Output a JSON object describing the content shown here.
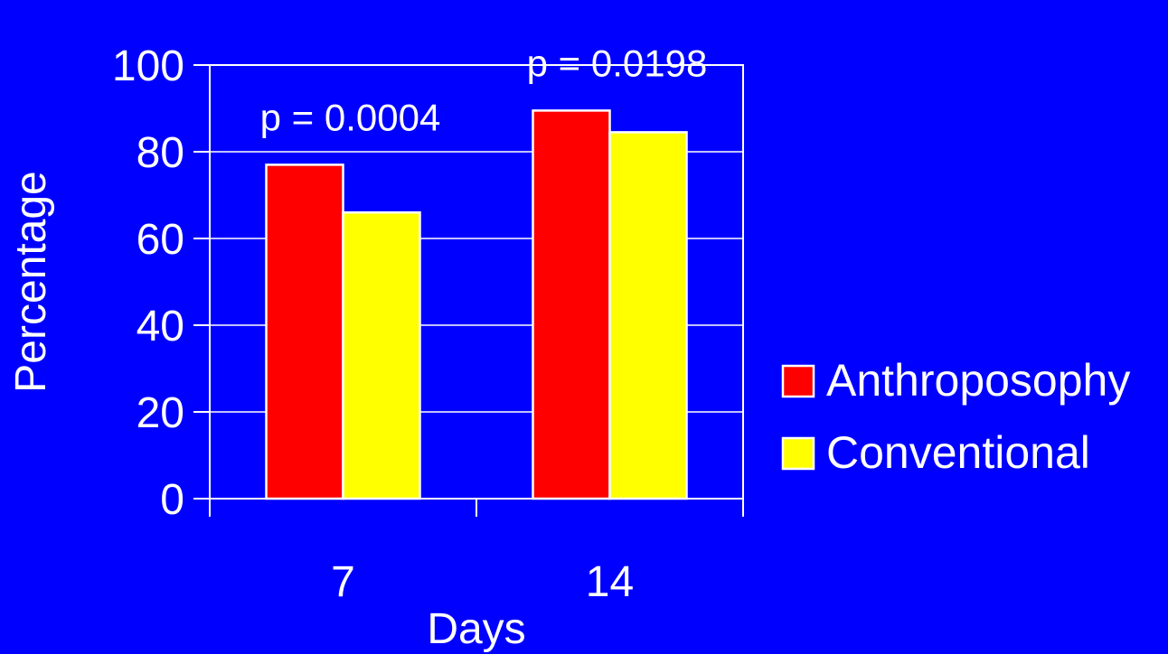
{
  "chart_data": {
    "type": "bar",
    "categories": [
      "7",
      "14"
    ],
    "series": [
      {
        "name": "Anthroposophy",
        "values": [
          77,
          89.5
        ],
        "color": "#ff0000"
      },
      {
        "name": "Conventional",
        "values": [
          66,
          84.5
        ],
        "color": "#ffff00"
      }
    ],
    "xlabel": "Days",
    "ylabel": "Percentage",
    "ylim": [
      0,
      100
    ],
    "yticks": [
      "0",
      "20",
      "40",
      "60",
      "80",
      "100"
    ],
    "grid": true,
    "legend_position": "right",
    "annotations": [
      {
        "category": "7",
        "text": "p = 0.0004"
      },
      {
        "category": "14",
        "text": "p = 0.0198"
      }
    ],
    "background_color": "#0000ff",
    "axis_color": "#ffffff"
  }
}
